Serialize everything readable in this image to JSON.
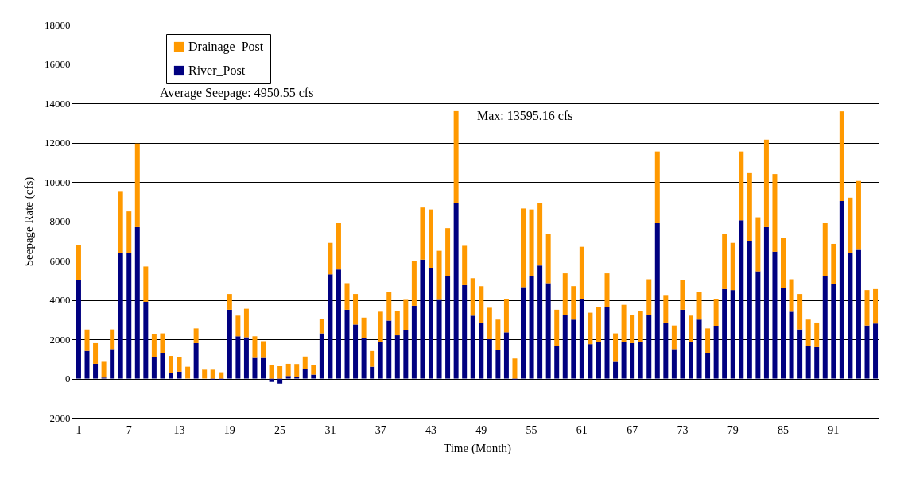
{
  "chart_data": {
    "type": "bar",
    "stacked": true,
    "xlabel": "Time (Month)",
    "ylabel": "Seepage Rate (cfs)",
    "categories": [
      "1",
      null,
      null,
      null,
      null,
      null,
      "7",
      null,
      null,
      null,
      null,
      null,
      "13",
      null,
      null,
      null,
      null,
      null,
      "19",
      null,
      null,
      null,
      null,
      null,
      "25",
      null,
      null,
      null,
      null,
      null,
      "31",
      null,
      null,
      null,
      null,
      null,
      "37",
      null,
      null,
      null,
      null,
      null,
      "43",
      null,
      null,
      null,
      null,
      null,
      "49",
      null,
      null,
      null,
      null,
      null,
      "55",
      null,
      null,
      null,
      null,
      null,
      "61",
      null,
      null,
      null,
      null,
      null,
      "67",
      null,
      null,
      null,
      null,
      null,
      "73",
      null,
      null,
      null,
      null,
      null,
      "79",
      null,
      null,
      null,
      null,
      null,
      "85",
      null,
      null,
      null,
      null,
      null,
      "91",
      null,
      null,
      null,
      null,
      null
    ],
    "series": [
      {
        "name": "River_Post",
        "color": "#000080",
        "values": [
          5000,
          1400,
          750,
          50,
          1500,
          6400,
          6400,
          7700,
          3900,
          1100,
          1300,
          300,
          350,
          0,
          1800,
          0,
          -50,
          -90,
          3500,
          2150,
          2100,
          1050,
          1050,
          -170,
          -250,
          130,
          90,
          500,
          200,
          2300,
          5300,
          5550,
          3500,
          2750,
          2050,
          600,
          1850,
          2950,
          2200,
          2450,
          3700,
          6050,
          5600,
          4000,
          5200,
          8920,
          4750,
          3200,
          2850,
          2000,
          1450,
          2350,
          -50,
          4650,
          5200,
          5750,
          4850,
          1650,
          3250,
          3000,
          4050,
          1750,
          1850,
          3650,
          850,
          1850,
          1800,
          1850,
          3250,
          7900,
          2850,
          1500,
          3500,
          1850,
          3000,
          1300,
          2650,
          4550,
          4500,
          8050,
          7000,
          5450,
          7700,
          6450,
          4600,
          3400,
          2500,
          1650,
          1600,
          5200,
          4800,
          9030,
          6400,
          6550,
          2700,
          2800
        ]
      },
      {
        "name": "Drainage_Post",
        "color": "#ff9900",
        "values": [
          1800,
          1100,
          1050,
          800,
          1000,
          3100,
          2100,
          4250,
          1800,
          1150,
          1000,
          850,
          750,
          600,
          750,
          450,
          450,
          320,
          800,
          1050,
          1450,
          1100,
          850,
          670,
          630,
          620,
          650,
          620,
          500,
          750,
          1600,
          2350,
          1350,
          1550,
          1050,
          800,
          1550,
          1450,
          1250,
          1550,
          2300,
          2650,
          3000,
          2500,
          2450,
          4680,
          2000,
          1900,
          1850,
          1600,
          1550,
          1700,
          1020,
          4000,
          3400,
          3200,
          2500,
          1850,
          2100,
          1700,
          2650,
          1600,
          1800,
          1700,
          1450,
          1900,
          1450,
          1600,
          1800,
          3650,
          1400,
          1200,
          1500,
          1350,
          1400,
          1250,
          1400,
          2800,
          2400,
          3500,
          3450,
          2750,
          4450,
          3950,
          2550,
          1650,
          1800,
          1350,
          1250,
          2700,
          2050,
          4560,
          2800,
          3500,
          1800,
          1750
        ]
      }
    ],
    "ylim": [
      -2000,
      18000
    ],
    "yticks": [
      -2000,
      0,
      2000,
      4000,
      6000,
      8000,
      10000,
      12000,
      14000,
      16000,
      18000
    ],
    "grid": "y",
    "legend": "top left",
    "annotations": [
      "Average Seepage: 4950.55 cfs",
      "Max: 13595.16 cfs"
    ]
  }
}
